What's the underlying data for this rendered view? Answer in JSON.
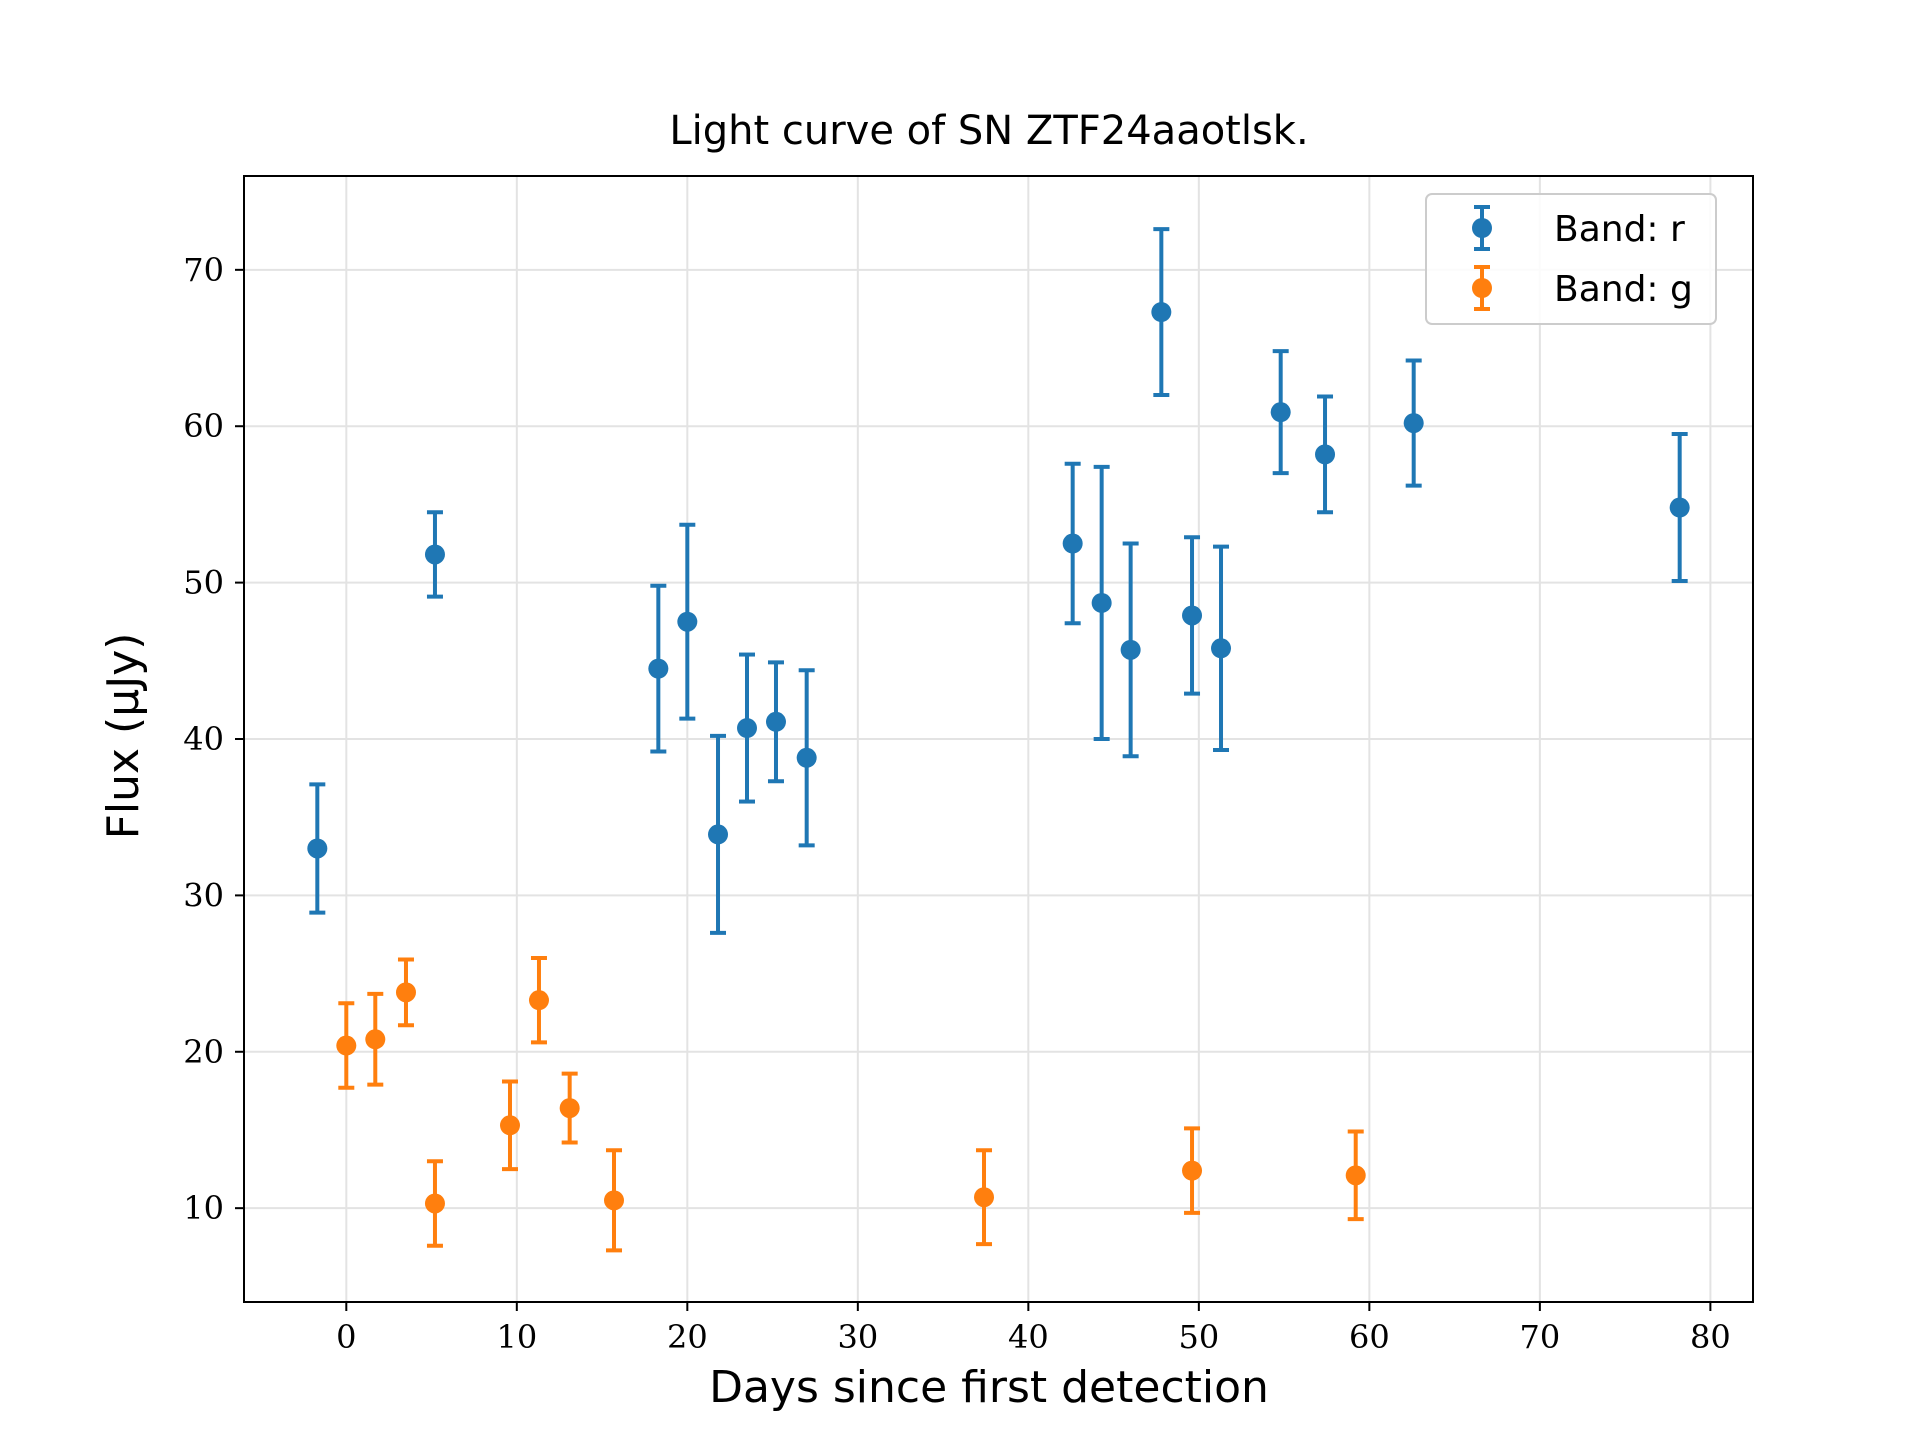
{
  "chart_data": {
    "type": "scatter",
    "title": "Light curve of SN ZTF24aaotlsk.",
    "xlabel": "Days since first detection",
    "ylabel": "Flux (μJy)",
    "xlim": [
      -6,
      82.5
    ],
    "ylim": [
      4,
      76
    ],
    "xticks": [
      0,
      10,
      20,
      30,
      40,
      50,
      60,
      70,
      80
    ],
    "yticks": [
      10,
      20,
      30,
      40,
      50,
      60,
      70
    ],
    "grid": true,
    "legend_position": "top-right",
    "series": [
      {
        "name": "Band: r",
        "color": "#1f77b4",
        "points": [
          {
            "x": -1.7,
            "y": 33.0,
            "yerr": 4.1
          },
          {
            "x": 5.2,
            "y": 51.8,
            "yerr": 2.7
          },
          {
            "x": 18.3,
            "y": 44.5,
            "yerr": 5.3
          },
          {
            "x": 20.0,
            "y": 47.5,
            "yerr": 6.2
          },
          {
            "x": 21.8,
            "y": 33.9,
            "yerr": 6.3
          },
          {
            "x": 23.5,
            "y": 40.7,
            "yerr": 4.7
          },
          {
            "x": 25.2,
            "y": 41.1,
            "yerr": 3.8
          },
          {
            "x": 27.0,
            "y": 38.8,
            "yerr": 5.6
          },
          {
            "x": 42.6,
            "y": 52.5,
            "yerr": 5.1
          },
          {
            "x": 44.3,
            "y": 48.7,
            "yerr": 8.7
          },
          {
            "x": 46.0,
            "y": 45.7,
            "yerr": 6.8
          },
          {
            "x": 47.8,
            "y": 67.3,
            "yerr": 5.3
          },
          {
            "x": 49.6,
            "y": 47.9,
            "yerr": 5.0
          },
          {
            "x": 51.3,
            "y": 45.8,
            "yerr": 6.5
          },
          {
            "x": 54.8,
            "y": 60.9,
            "yerr": 3.9
          },
          {
            "x": 57.4,
            "y": 58.2,
            "yerr": 3.7
          },
          {
            "x": 62.6,
            "y": 60.2,
            "yerr": 4.0
          },
          {
            "x": 78.2,
            "y": 54.8,
            "yerr": 4.7
          }
        ]
      },
      {
        "name": "Band: g",
        "color": "#ff7f0e",
        "points": [
          {
            "x": 0.0,
            "y": 20.4,
            "yerr": 2.7
          },
          {
            "x": 1.7,
            "y": 20.8,
            "yerr": 2.9
          },
          {
            "x": 3.5,
            "y": 23.8,
            "yerr": 2.1
          },
          {
            "x": 5.2,
            "y": 10.3,
            "yerr": 2.7
          },
          {
            "x": 9.6,
            "y": 15.3,
            "yerr": 2.8
          },
          {
            "x": 11.3,
            "y": 23.3,
            "yerr": 2.7
          },
          {
            "x": 13.1,
            "y": 16.4,
            "yerr": 2.2
          },
          {
            "x": 15.7,
            "y": 10.5,
            "yerr": 3.2
          },
          {
            "x": 37.4,
            "y": 10.7,
            "yerr": 3.0
          },
          {
            "x": 49.6,
            "y": 12.4,
            "yerr": 2.7
          },
          {
            "x": 59.2,
            "y": 12.1,
            "yerr": 2.8
          }
        ]
      }
    ]
  }
}
